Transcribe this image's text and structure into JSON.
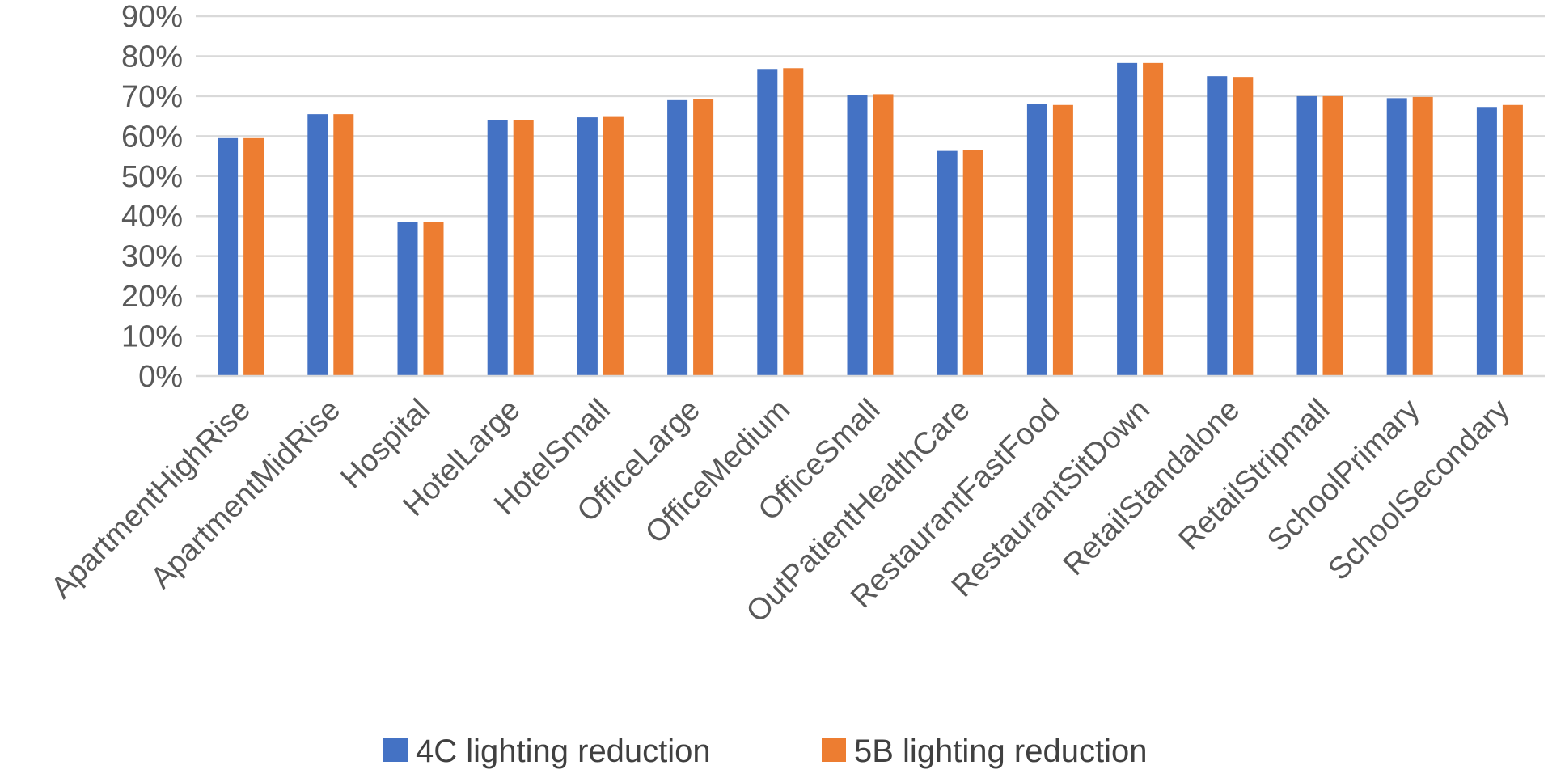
{
  "chart_data": {
    "type": "bar",
    "title": "",
    "xlabel": "",
    "ylabel": "",
    "ylim": [
      0,
      90
    ],
    "y_ticks": [
      "0%",
      "10%",
      "20%",
      "30%",
      "40%",
      "50%",
      "60%",
      "70%",
      "80%",
      "90%"
    ],
    "y_tick_values": [
      0,
      10,
      20,
      30,
      40,
      50,
      60,
      70,
      80,
      90
    ],
    "grid": true,
    "legend_position": "bottom",
    "categories": [
      "ApartmentHighRise",
      "ApartmentMidRise",
      "Hospital",
      "HotelLarge",
      "HotelSmall",
      "OfficeLarge",
      "OfficeMedium",
      "OfficeSmall",
      "OutPatientHealthCare",
      "RestaurantFastFood",
      "RestaurantSitDown",
      "RetailStandalone",
      "RetailStripmall",
      "SchoolPrimary",
      "SchoolSecondary"
    ],
    "series": [
      {
        "name": "4C lighting reduction",
        "color": "#4472C4",
        "values": [
          59.5,
          65.5,
          38.5,
          64,
          64.7,
          69,
          76.8,
          70.3,
          56.3,
          68,
          78.3,
          75,
          70,
          69.5,
          67.3
        ]
      },
      {
        "name": "5B lighting reduction",
        "color": "#ED7D31",
        "values": [
          59.5,
          65.5,
          38.5,
          64,
          64.8,
          69.3,
          77,
          70.5,
          56.5,
          67.8,
          78.3,
          74.8,
          70,
          69.8,
          67.8
        ]
      }
    ]
  }
}
